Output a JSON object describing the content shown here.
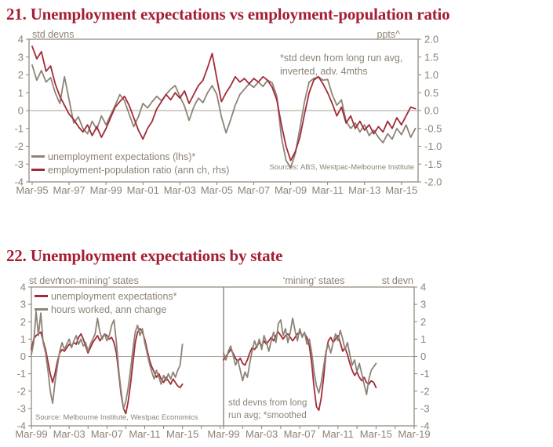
{
  "colors": {
    "title": "#a41e34",
    "red": "#a32b38",
    "gray": "#8d8477",
    "axis": "#8c8374",
    "gridline": "#a89f91",
    "text": "#8c8374"
  },
  "chart21": {
    "title": "21. Unemployment expectations vs employment-population ratio",
    "left_axis_label": "std devns",
    "right_axis_label": "ppts^",
    "annotation_line1": "*std devn from long run avg,",
    "annotation_line2": "inverted, adv. 4mths",
    "source": "Sources: ABS, Westpac-Melbourne Institute",
    "legend": {
      "series1": "unemployment expectations (lhs)*",
      "series2": "employment-population ratio (ann ch, rhs)"
    }
  },
  "chart22": {
    "title": "22. Unemployment expectations by state",
    "axis_label_left": "st devn",
    "axis_label_right": "st devn",
    "panel_left_header": "‘non-mining’ states",
    "panel_right_header": "‘mining’ states",
    "legend": {
      "series1": "unemployment expectations*",
      "series2": "hours worked, ann change"
    },
    "source": "Source: Melbourne Institute, Westpac Economics",
    "annotation_line1": "std devns from long",
    "annotation_line2": "run avg; *smoothed"
  },
  "chart_data": [
    {
      "type": "line",
      "title": "21. Unemployment expectations vs employment-population ratio",
      "ylabel_left": "std devns",
      "ylabel_right": "ppts^",
      "ylim_left": [
        -4,
        4
      ],
      "ylim_right": [
        -2,
        2
      ],
      "y_ticks_left": [
        "4",
        "3",
        "2",
        "1",
        "0",
        "-1",
        "-2",
        "-3",
        "-4"
      ],
      "y_ticks_right": [
        "2.0",
        "1.5",
        "1.0",
        "0.5",
        "0.0",
        "-0.5",
        "-1.0",
        "-1.5",
        "-2.0"
      ],
      "xlim": [
        1995.08,
        2016.15
      ],
      "x_start": 1995.25,
      "x_step": 0.25,
      "x_tick_step": 2,
      "x_tick_labels": [
        "Mar-95",
        "Mar-97",
        "Mar-99",
        "Mar-01",
        "Mar-03",
        "Mar-05",
        "Mar-07",
        "Mar-09",
        "Mar-11",
        "Mar-13",
        "Mar-15"
      ],
      "x_tick_years": [
        1995.25,
        1997.25,
        1999.25,
        2001.25,
        2003.25,
        2005.25,
        2007.25,
        2009.25,
        2011.25,
        2013.25,
        2015.25
      ],
      "grid": false,
      "legend_position": "bottom-left-inside",
      "annotation": "*std devn from long run avg, inverted, adv. 4mths",
      "source": "Sources: ABS, Westpac-Melbourne Institute",
      "series": [
        {
          "name": "unemployment expectations (lhs)*",
          "axis": "left",
          "color_key": "gray",
          "values": [
            2.55,
            1.7,
            2.25,
            1.6,
            1.85,
            1.0,
            0.4,
            1.9,
            0.6,
            -0.7,
            -0.35,
            -1.0,
            -1.3,
            -0.6,
            -1.05,
            -0.3,
            -0.8,
            -0.25,
            0.3,
            0.9,
            0.55,
            -0.2,
            -0.9,
            -0.35,
            0.4,
            0.15,
            0.5,
            0.8,
            0.55,
            0.9,
            1.2,
            1.4,
            0.8,
            0.25,
            -0.55,
            0.2,
            0.7,
            0.45,
            1.0,
            1.4,
            0.9,
            -0.35,
            -1.25,
            -0.5,
            0.3,
            0.9,
            1.2,
            1.5,
            1.3,
            1.6,
            1.35,
            1.7,
            1.55,
            0.8,
            -1.5,
            -2.8,
            -3.2,
            -2.4,
            -1.0,
            0.5,
            1.6,
            1.8,
            1.9,
            1.7,
            1.75,
            0.9,
            0.3,
            0.6,
            -0.6,
            -1.0,
            -0.7,
            -1.2,
            -0.8,
            -1.4,
            -1.1,
            -1.5,
            -1.8,
            -1.3,
            -1.6,
            -1.0,
            -1.35,
            -0.8,
            -1.5,
            -1.0
          ]
        },
        {
          "name": "employment-population ratio (ann ch, rhs)",
          "axis": "right",
          "color_key": "red",
          "values": [
            1.8,
            1.45,
            1.65,
            1.1,
            1.25,
            0.75,
            0.4,
            0.15,
            -0.1,
            -0.25,
            -0.45,
            -0.6,
            -0.4,
            -0.7,
            -0.45,
            -0.75,
            -0.5,
            -0.2,
            0.1,
            0.25,
            0.4,
            0.15,
            -0.2,
            -0.55,
            -0.8,
            -0.5,
            -0.3,
            0.05,
            0.25,
            0.45,
            0.3,
            0.5,
            0.35,
            0.55,
            0.2,
            0.45,
            0.7,
            0.85,
            1.2,
            1.6,
            0.9,
            0.25,
            0.5,
            0.7,
            0.95,
            0.8,
            0.9,
            0.75,
            0.9,
            0.8,
            0.95,
            0.85,
            0.65,
            0.3,
            -0.4,
            -1.0,
            -1.4,
            -1.15,
            -0.75,
            -0.1,
            0.5,
            0.85,
            0.95,
            0.75,
            0.5,
            0.2,
            -0.15,
            0.1,
            -0.35,
            -0.15,
            -0.5,
            -0.3,
            -0.55,
            -0.4,
            -0.65,
            -0.45,
            -0.6,
            -0.3,
            -0.5,
            -0.2,
            -0.4,
            -0.15,
            0.1,
            0.05
          ]
        }
      ]
    },
    {
      "type": "line",
      "title": "22. Unemployment expectations by state — 'non-mining' states",
      "ylabel_left": "st devn",
      "ylim_left": [
        -4,
        4
      ],
      "y_ticks_left": [
        "4",
        "3",
        "2",
        "1",
        "0",
        "-1",
        "-2",
        "-3",
        "-4"
      ],
      "xlim": [
        1999.25,
        2019.6
      ],
      "x_start": 1999.25,
      "x_step": 0.25,
      "x_tick_step": 2,
      "x_tick_labels": [
        "Mar-99",
        "Mar-03",
        "Mar-07",
        "Mar-11",
        "Mar-15"
      ],
      "x_tick_years": [
        1999.25,
        2003.25,
        2007.25,
        2011.25,
        2015.25
      ],
      "grid": false,
      "legend_position": "top-left-inside",
      "source": "Source: Melbourne Institute, Westpac Economics",
      "series": [
        {
          "name": "unemployment expectations*",
          "axis": "left",
          "color_key": "red",
          "values": [
            0.4,
            1.0,
            1.2,
            1.3,
            1.4,
            0.9,
            0.4,
            -0.3,
            -1.0,
            -1.5,
            -1.0,
            -0.3,
            0.2,
            0.4,
            0.3,
            0.5,
            0.7,
            0.6,
            0.8,
            0.7,
            1.1,
            1.3,
            1.0,
            0.6,
            0.2,
            0.5,
            0.8,
            1.0,
            1.2,
            0.9,
            1.1,
            1.3,
            1.2,
            1.0,
            1.1,
            0.8,
            0.2,
            -1.0,
            -2.2,
            -3.0,
            -3.3,
            -2.6,
            -1.6,
            -0.4,
            0.8,
            1.4,
            1.6,
            1.4,
            1.0,
            0.4,
            -0.2,
            -0.6,
            -0.9,
            -1.2,
            -1.0,
            -1.3,
            -1.5,
            -1.2,
            -1.4,
            -1.6,
            -1.3,
            -1.5,
            -1.7,
            -1.8,
            -1.6
          ]
        },
        {
          "name": "hours worked, ann change",
          "axis": "left",
          "color_key": "gray",
          "values": [
            0.1,
            0.8,
            2.6,
            1.2,
            2.5,
            0.8,
            0.2,
            -0.8,
            -2.0,
            -2.7,
            -1.5,
            -0.6,
            0.3,
            0.8,
            0.4,
            0.7,
            1.0,
            0.5,
            0.9,
            1.2,
            0.7,
            1.0,
            0.6,
            0.8,
            0.3,
            0.7,
            1.0,
            1.3,
            2.2,
            1.4,
            1.0,
            1.3,
            0.9,
            1.2,
            1.8,
            2.1,
            0.8,
            -0.8,
            -2.0,
            -3.0,
            -2.6,
            -1.8,
            -0.8,
            0.4,
            1.4,
            1.8,
            1.2,
            1.6,
            0.8,
            0.2,
            -0.4,
            -0.9,
            -1.3,
            -0.8,
            -1.2,
            -1.6,
            -1.1,
            -1.4,
            -1.0,
            -1.3,
            -0.9,
            -1.2,
            -0.8,
            -0.5,
            0.7
          ]
        }
      ]
    },
    {
      "type": "line",
      "title": "22. Unemployment expectations by state — 'mining' states",
      "ylabel_right": "st devn",
      "ylim_left": [
        -4,
        4
      ],
      "y_ticks_right": [
        "4",
        "3",
        "2",
        "1",
        "0",
        "-1",
        "-2",
        "-3",
        "-4"
      ],
      "xlim": [
        1999.25,
        2019.25
      ],
      "x_start": 1999.25,
      "x_step": 0.25,
      "x_tick_step": 2,
      "x_tick_labels": [
        "Mar-99",
        "Mar-03",
        "Mar-07",
        "Mar-11",
        "Mar-15",
        "Mar-19"
      ],
      "x_tick_years": [
        1999.25,
        2003.25,
        2007.25,
        2011.25,
        2015.25,
        2019.25
      ],
      "grid": false,
      "annotation": "std devns from long run avg; *smoothed",
      "series": [
        {
          "name": "unemployment expectations*",
          "axis": "left",
          "color_key": "red",
          "values": [
            -0.2,
            0.0,
            0.2,
            0.4,
            0.2,
            -0.1,
            -0.3,
            -0.1,
            -0.4,
            -0.5,
            -0.2,
            0.2,
            0.5,
            0.4,
            0.6,
            0.8,
            0.6,
            0.9,
            0.7,
            0.9,
            1.1,
            0.9,
            1.2,
            1.4,
            1.2,
            1.0,
            1.2,
            1.3,
            1.1,
            0.9,
            1.1,
            1.3,
            1.4,
            1.2,
            1.3,
            1.1,
            0.6,
            -0.4,
            -1.8,
            -2.9,
            -3.1,
            -2.4,
            -1.2,
            0.2,
            0.9,
            1.1,
            0.8,
            1.0,
            1.2,
            0.8,
            0.3,
            0.5,
            0.1,
            -0.4,
            -0.8,
            -1.1,
            -0.9,
            -1.2,
            -1.4,
            -1.2,
            -1.5,
            -1.6,
            -1.4,
            -1.5,
            -1.8
          ]
        },
        {
          "name": "hours worked, ann change",
          "axis": "left",
          "color_key": "gray",
          "values": [
            0.2,
            -0.2,
            0.3,
            0.6,
            0.1,
            -0.5,
            -0.2,
            -0.8,
            -1.4,
            -0.9,
            -1.2,
            -0.4,
            0.3,
            0.9,
            0.5,
            1.0,
            0.4,
            1.2,
            0.8,
            0.3,
            0.9,
            1.4,
            0.8,
            1.9,
            2.1,
            1.2,
            1.6,
            0.8,
            1.4,
            2.2,
            1.5,
            0.9,
            1.6,
            1.1,
            1.4,
            0.7,
            1.0,
            0.2,
            -0.9,
            -1.7,
            -2.1,
            -1.5,
            -0.6,
            0.3,
            0.7,
            0.2,
            0.8,
            1.3,
            0.9,
            1.5,
            1.0,
            0.4,
            0.8,
            0.1,
            -0.5,
            -0.2,
            -0.9,
            -0.4,
            -1.0,
            -1.6,
            -2.2,
            -1.3,
            -0.8,
            -0.6,
            -0.4
          ]
        }
      ]
    }
  ]
}
